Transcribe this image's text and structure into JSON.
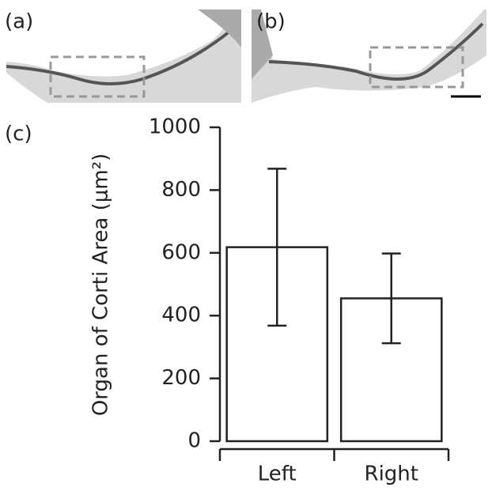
{
  "panels": {
    "a": "(a)",
    "b": "(b)"
  },
  "chart_data": {
    "type": "bar",
    "panel_label": "(c)",
    "y_label": "Organ of Corti Area (μm²)",
    "categories": [
      "Left",
      "Right"
    ],
    "values": [
      618,
      455
    ],
    "errors": [
      250,
      143
    ],
    "color": "#ffffff",
    "ylim": [
      0,
      1000
    ],
    "yticks": [
      0,
      200,
      400,
      600,
      800,
      1000
    ]
  }
}
